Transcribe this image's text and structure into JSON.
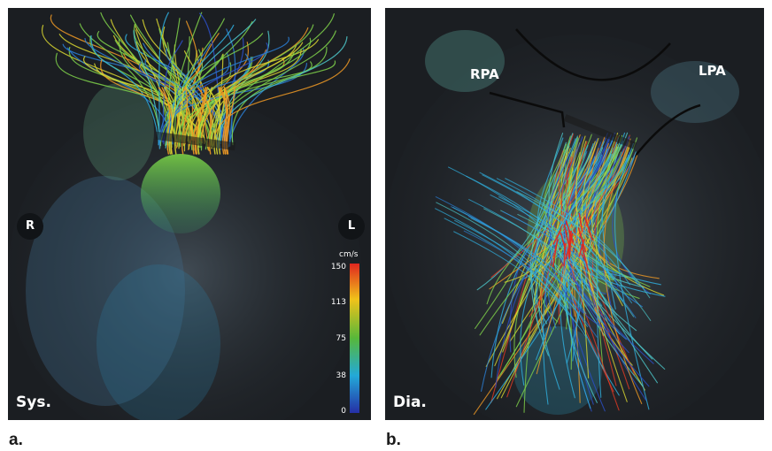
{
  "panel_a": {
    "phase_label": "Sys.",
    "right_marker": "R",
    "left_marker": "L",
    "figure_letter": "a.",
    "colorbar": {
      "unit": "cm/s",
      "ticks": [
        "150",
        "113",
        "75",
        "38",
        "0"
      ],
      "colors": [
        "#e0261f",
        "#f0c21a",
        "#57b83a",
        "#23a9d8",
        "#252fa6"
      ]
    }
  },
  "panel_b": {
    "phase_label": "Dia.",
    "rpa_label": "RPA",
    "lpa_label": "LPA",
    "figure_letter": "b."
  }
}
